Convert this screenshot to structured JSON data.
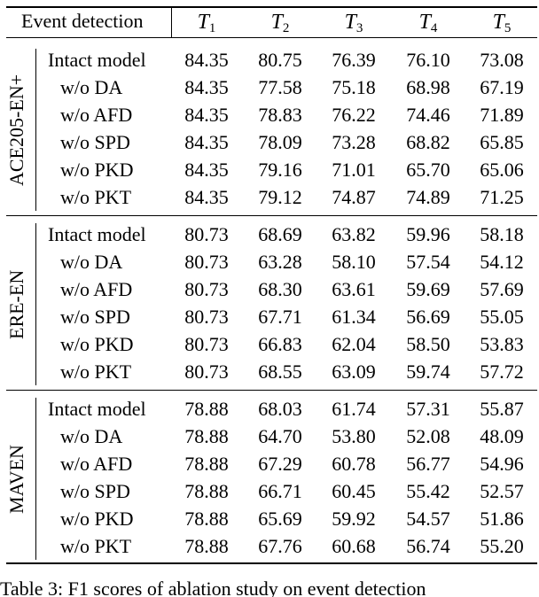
{
  "table": {
    "header": {
      "corner": "Event detection",
      "columns": [
        "T",
        "T",
        "T",
        "T",
        "T"
      ],
      "column_subscripts": [
        "1",
        "2",
        "3",
        "4",
        "5"
      ]
    },
    "groups": [
      {
        "dataset": "ACE205-EN+",
        "rows": [
          {
            "method": "Intact model",
            "values": [
              "84.35",
              "80.75",
              "76.39",
              "76.10",
              "73.08"
            ]
          },
          {
            "method": "w/o DA",
            "values": [
              "84.35",
              "77.58",
              "75.18",
              "68.98",
              "67.19"
            ]
          },
          {
            "method": "w/o AFD",
            "values": [
              "84.35",
              "78.83",
              "76.22",
              "74.46",
              "71.89"
            ]
          },
          {
            "method": "w/o SPD",
            "values": [
              "84.35",
              "78.09",
              "73.28",
              "68.82",
              "65.85"
            ]
          },
          {
            "method": "w/o PKD",
            "values": [
              "84.35",
              "79.16",
              "71.01",
              "65.70",
              "65.06"
            ]
          },
          {
            "method": "w/o PKT",
            "values": [
              "84.35",
              "79.12",
              "74.87",
              "74.89",
              "71.25"
            ]
          }
        ]
      },
      {
        "dataset": "ERE-EN",
        "rows": [
          {
            "method": "Intact model",
            "values": [
              "80.73",
              "68.69",
              "63.82",
              "59.96",
              "58.18"
            ]
          },
          {
            "method": "w/o DA",
            "values": [
              "80.73",
              "63.28",
              "58.10",
              "57.54",
              "54.12"
            ]
          },
          {
            "method": "w/o AFD",
            "values": [
              "80.73",
              "68.30",
              "63.61",
              "59.69",
              "57.69"
            ]
          },
          {
            "method": "w/o SPD",
            "values": [
              "80.73",
              "67.71",
              "61.34",
              "56.69",
              "55.05"
            ]
          },
          {
            "method": "w/o PKD",
            "values": [
              "80.73",
              "66.83",
              "62.04",
              "58.50",
              "53.83"
            ]
          },
          {
            "method": "w/o PKT",
            "values": [
              "80.73",
              "68.55",
              "63.09",
              "59.74",
              "57.72"
            ]
          }
        ]
      },
      {
        "dataset": "MAVEN",
        "rows": [
          {
            "method": "Intact model",
            "values": [
              "78.88",
              "68.03",
              "61.74",
              "57.31",
              "55.87"
            ]
          },
          {
            "method": "w/o DA",
            "values": [
              "78.88",
              "64.70",
              "53.80",
              "52.08",
              "48.09"
            ]
          },
          {
            "method": "w/o AFD",
            "values": [
              "78.88",
              "67.29",
              "60.78",
              "56.77",
              "54.96"
            ]
          },
          {
            "method": "w/o SPD",
            "values": [
              "78.88",
              "66.71",
              "60.45",
              "55.42",
              "52.57"
            ]
          },
          {
            "method": "w/o PKD",
            "values": [
              "78.88",
              "65.69",
              "59.92",
              "54.57",
              "51.86"
            ]
          },
          {
            "method": "w/o PKT",
            "values": [
              "78.88",
              "67.76",
              "60.68",
              "56.74",
              "55.20"
            ]
          }
        ]
      }
    ]
  },
  "caption": {
    "text": "Table 3: F1 scores of ablation study on event detection"
  }
}
